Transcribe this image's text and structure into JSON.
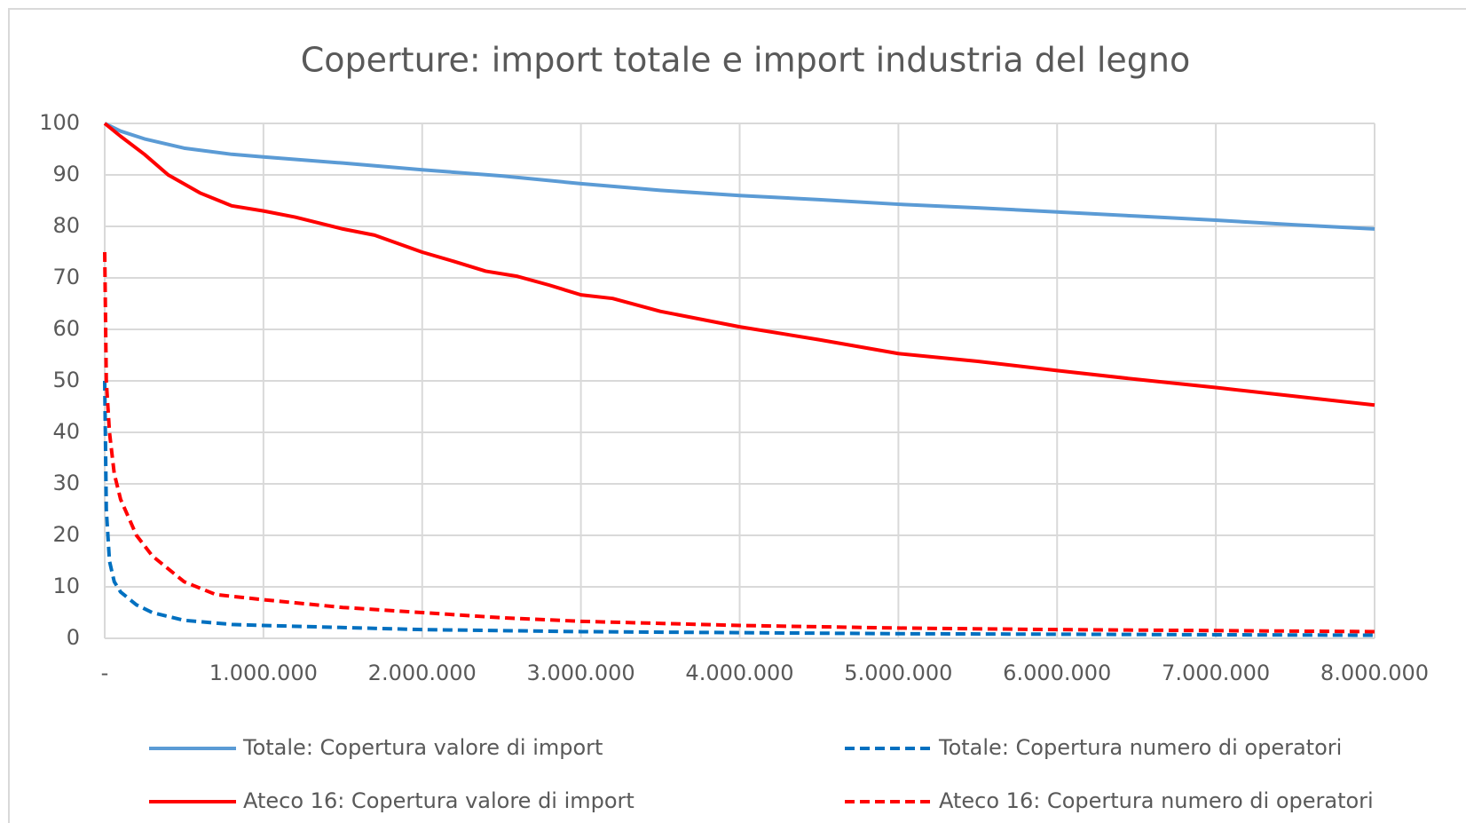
{
  "chart_data": {
    "type": "line",
    "title": "Coperture: import totale e import industria del legno",
    "xlim": [
      0,
      8000000
    ],
    "ylim": [
      0,
      100
    ],
    "xticks": [
      {
        "value": 0,
        "label": "-"
      },
      {
        "value": 1000000,
        "label": "1.000.000"
      },
      {
        "value": 2000000,
        "label": "2.000.000"
      },
      {
        "value": 3000000,
        "label": "3.000.000"
      },
      {
        "value": 4000000,
        "label": "4.000.000"
      },
      {
        "value": 5000000,
        "label": "5.000.000"
      },
      {
        "value": 6000000,
        "label": "6.000.000"
      },
      {
        "value": 7000000,
        "label": "7.000.000"
      },
      {
        "value": 8000000,
        "label": "8.000.000"
      }
    ],
    "yticks": [
      0,
      10,
      20,
      30,
      40,
      50,
      60,
      70,
      80,
      90,
      100
    ],
    "grid": true,
    "legend": "bottom",
    "series": [
      {
        "name": "Totale: Copertura valore di import",
        "color": "#5b9bd5",
        "dashed": false,
        "x": [
          0,
          100000,
          250000,
          500000,
          800000,
          1000000,
          1500000,
          2000000,
          2500000,
          3000000,
          3500000,
          4000000,
          4500000,
          5000000,
          5500000,
          6000000,
          6500000,
          7000000,
          7500000,
          8000000
        ],
        "values": [
          100,
          98.5,
          97,
          95.2,
          94,
          93.5,
          92.3,
          91,
          89.8,
          88.3,
          87,
          86,
          85.2,
          84.3,
          83.6,
          82.8,
          82,
          81.2,
          80.3,
          79.5
        ]
      },
      {
        "name": "Totale: Copertura numero di operatori",
        "color": "#0070c0",
        "dashed": true,
        "x": [
          0,
          10000,
          30000,
          60000,
          100000,
          200000,
          300000,
          500000,
          800000,
          1000000,
          2000000,
          3000000,
          4000000,
          5000000,
          6000000,
          7000000,
          8000000
        ],
        "values": [
          50,
          25,
          15,
          11,
          9,
          6.5,
          5,
          3.5,
          2.7,
          2.5,
          1.7,
          1.3,
          1.1,
          0.9,
          0.8,
          0.7,
          0.6
        ]
      },
      {
        "name": "Ateco 16: Copertura valore di import",
        "color": "#ff0000",
        "dashed": false,
        "x": [
          0,
          100000,
          250000,
          400000,
          600000,
          800000,
          1000000,
          1200000,
          1500000,
          1700000,
          2000000,
          2200000,
          2400000,
          2600000,
          2800000,
          3000000,
          3200000,
          3500000,
          4000000,
          4500000,
          5000000,
          5500000,
          6000000,
          6500000,
          7000000,
          7500000,
          8000000
        ],
        "values": [
          100,
          97.5,
          94,
          90,
          86.5,
          84,
          83,
          81.8,
          79.5,
          78.3,
          75,
          73.2,
          71.3,
          70.3,
          68.6,
          66.7,
          66,
          63.5,
          60.5,
          58,
          55.3,
          53.8,
          52,
          50.3,
          48.7,
          47,
          45.3
        ]
      },
      {
        "name": "Ateco 16: Copertura numero di operatori",
        "color": "#ff0000",
        "dashed": true,
        "x": [
          0,
          10000,
          30000,
          60000,
          100000,
          200000,
          300000,
          500000,
          700000,
          1000000,
          1500000,
          2000000,
          2500000,
          3000000,
          4000000,
          5000000,
          6000000,
          7000000,
          8000000
        ],
        "values": [
          75,
          50,
          40,
          32,
          27,
          20,
          16,
          11,
          8.5,
          7.5,
          6,
          5,
          4,
          3.3,
          2.5,
          2,
          1.7,
          1.5,
          1.3
        ]
      }
    ]
  }
}
